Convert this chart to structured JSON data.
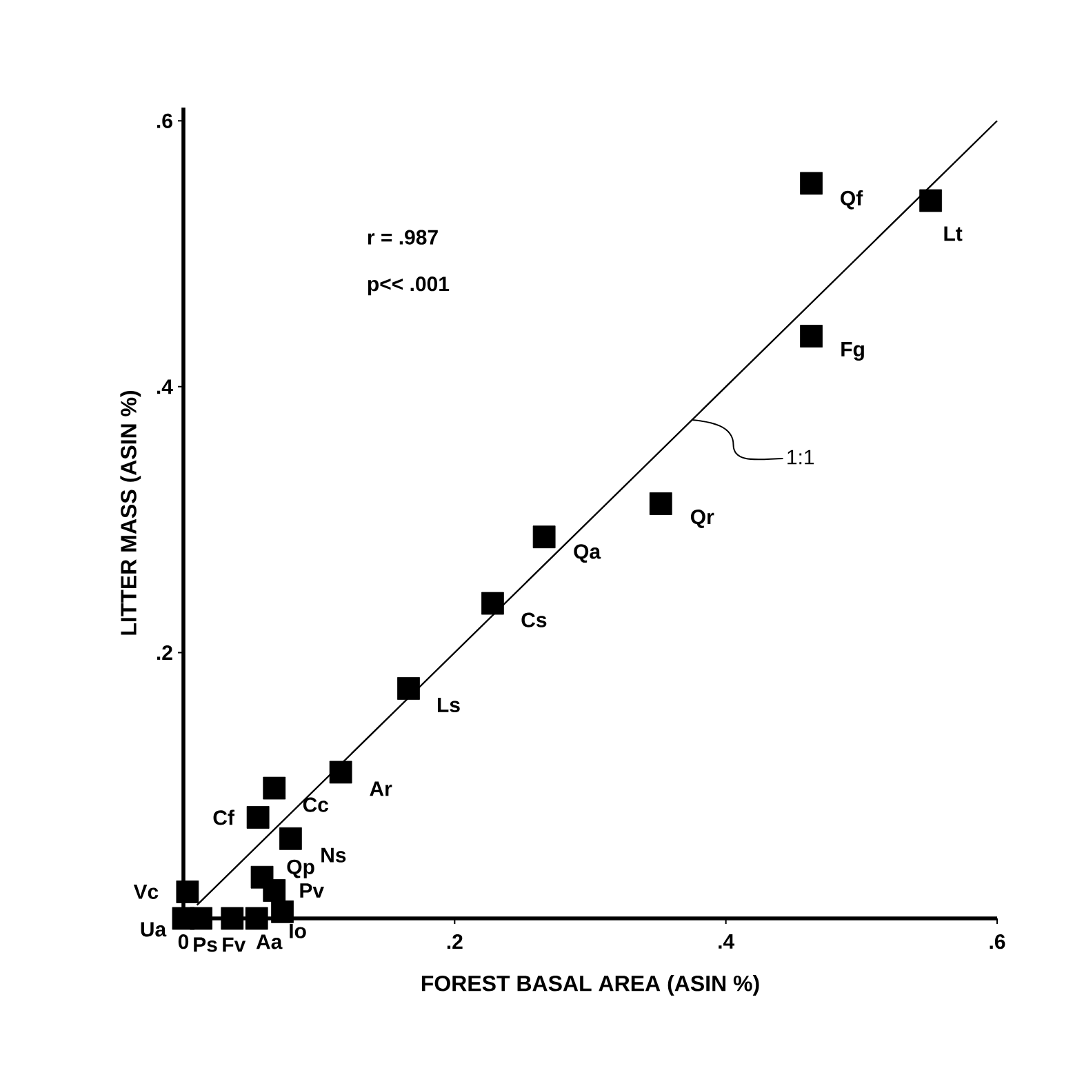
{
  "chart_data": {
    "type": "scatter",
    "xlabel": "FOREST BASAL AREA (ASIN %)",
    "ylabel": "LITTER MASS (ASIN %)",
    "xlim": [
      0,
      0.6
    ],
    "ylim": [
      0,
      0.61
    ],
    "xticks": [
      0,
      {
        "value": 0.2,
        "label": ".2"
      },
      {
        "value": 0.4,
        "label": ".4"
      },
      {
        "value": 0.6,
        "label": ".6"
      }
    ],
    "yticks": [
      {
        "value": 0.2,
        "label": ".2"
      },
      {
        "value": 0.4,
        "label": ".4"
      },
      {
        "value": 0.6,
        "label": ".6"
      }
    ],
    "marker": "square",
    "series": [
      {
        "type": "line",
        "marker": "none",
        "color": "#000000",
        "x": [
          0.01,
          0.6
        ],
        "values": [
          0.01,
          0.6
        ]
      },
      {
        "color": "#000000",
        "x": [
          0.463,
          0.551,
          0.463,
          0.352,
          0.266,
          0.228,
          0.166,
          0.116,
          0.067,
          0.055,
          0.079,
          0.058,
          0.067,
          0.003,
          0.073,
          0.054,
          0.036,
          0.013,
          0.0
        ],
        "values": [
          0.553,
          0.54,
          0.438,
          0.312,
          0.287,
          0.237,
          0.173,
          0.11,
          0.098,
          0.076,
          0.06,
          0.031,
          0.021,
          0.02,
          0.005,
          0.0,
          0.0,
          0.0,
          0.0
        ]
      }
    ],
    "annotations": [
      "r = .987",
      "p<< .001",
      {
        "text": "1:1",
        "x": 0.375,
        "y": 0.375
      },
      {
        "text": "Qf",
        "x": 0.463,
        "y": 0.553
      },
      {
        "text": "Lt",
        "x": 0.551,
        "y": 0.54
      },
      {
        "text": "Fg",
        "x": 0.463,
        "y": 0.438
      },
      {
        "text": "Qr",
        "x": 0.352,
        "y": 0.312
      },
      {
        "text": "Qa",
        "x": 0.266,
        "y": 0.287
      },
      {
        "text": "Cs",
        "x": 0.228,
        "y": 0.237
      },
      {
        "text": "Ls",
        "x": 0.166,
        "y": 0.173
      },
      {
        "text": "Ar",
        "x": 0.116,
        "y": 0.11
      },
      {
        "text": "Cc",
        "x": 0.067,
        "y": 0.098
      },
      {
        "text": "Cf",
        "x": 0.055,
        "y": 0.076
      },
      {
        "text": "Ns",
        "x": 0.079,
        "y": 0.06
      },
      {
        "text": "Qp",
        "x": 0.058,
        "y": 0.031
      },
      {
        "text": "Pv",
        "x": 0.067,
        "y": 0.021
      },
      {
        "text": "Vc",
        "x": 0.003,
        "y": 0.02
      },
      {
        "text": "Io",
        "x": 0.073,
        "y": 0.005
      },
      {
        "text": "Aa",
        "x": 0.054,
        "y": 0.0
      },
      {
        "text": "Fv",
        "x": 0.036,
        "y": 0.0
      },
      {
        "text": "Ps",
        "x": 0.013,
        "y": 0.0
      },
      {
        "text": "Ua",
        "x": 0.0,
        "y": 0.0
      }
    ]
  }
}
